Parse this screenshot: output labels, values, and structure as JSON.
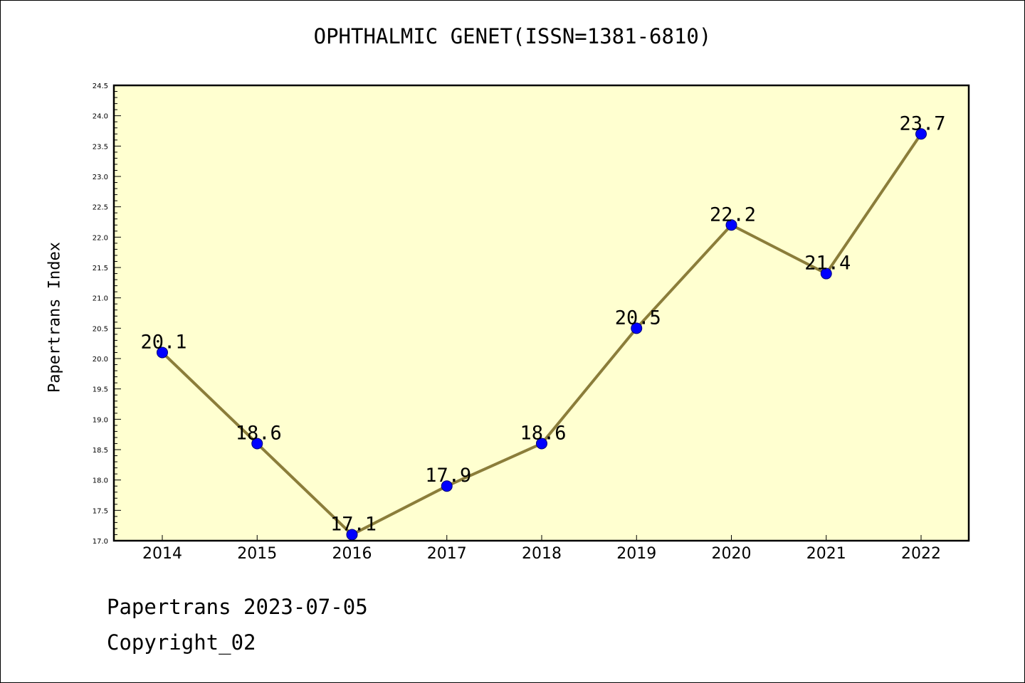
{
  "title": "OPHTHALMIC GENET(ISSN=1381-6810)",
  "footer": {
    "line1": "Papertrans 2023-07-05",
    "line2": "Copyright_02"
  },
  "colors": {
    "plot_background": "#ffffd0",
    "line": "#8b7d3a",
    "marker": "#0000ff"
  },
  "chart_data": {
    "type": "line",
    "title": "OPHTHALMIC GENET(ISSN=1381-6810)",
    "xlabel": "",
    "ylabel": "Papertrans Index",
    "categories": [
      "2014",
      "2015",
      "2016",
      "2017",
      "2018",
      "2019",
      "2020",
      "2021",
      "2022"
    ],
    "series": [
      {
        "values": [
          20.1,
          18.6,
          17.1,
          17.9,
          18.6,
          20.5,
          22.2,
          21.4,
          23.7
        ],
        "labels": [
          "20.1",
          "18.6",
          "17.1",
          "17.9",
          "18.6",
          "20.5",
          "22.2",
          "21.4",
          "23.7"
        ]
      }
    ],
    "ylim": [
      17.0,
      24.5
    ],
    "yticks": [
      "17.0",
      "17.5",
      "18.0",
      "18.5",
      "19.0",
      "19.5",
      "20.0",
      "20.5",
      "21.0",
      "21.5",
      "22.0",
      "22.5",
      "23.0",
      "23.5",
      "24.0",
      "24.5"
    ],
    "grid": false,
    "legend": "none"
  }
}
